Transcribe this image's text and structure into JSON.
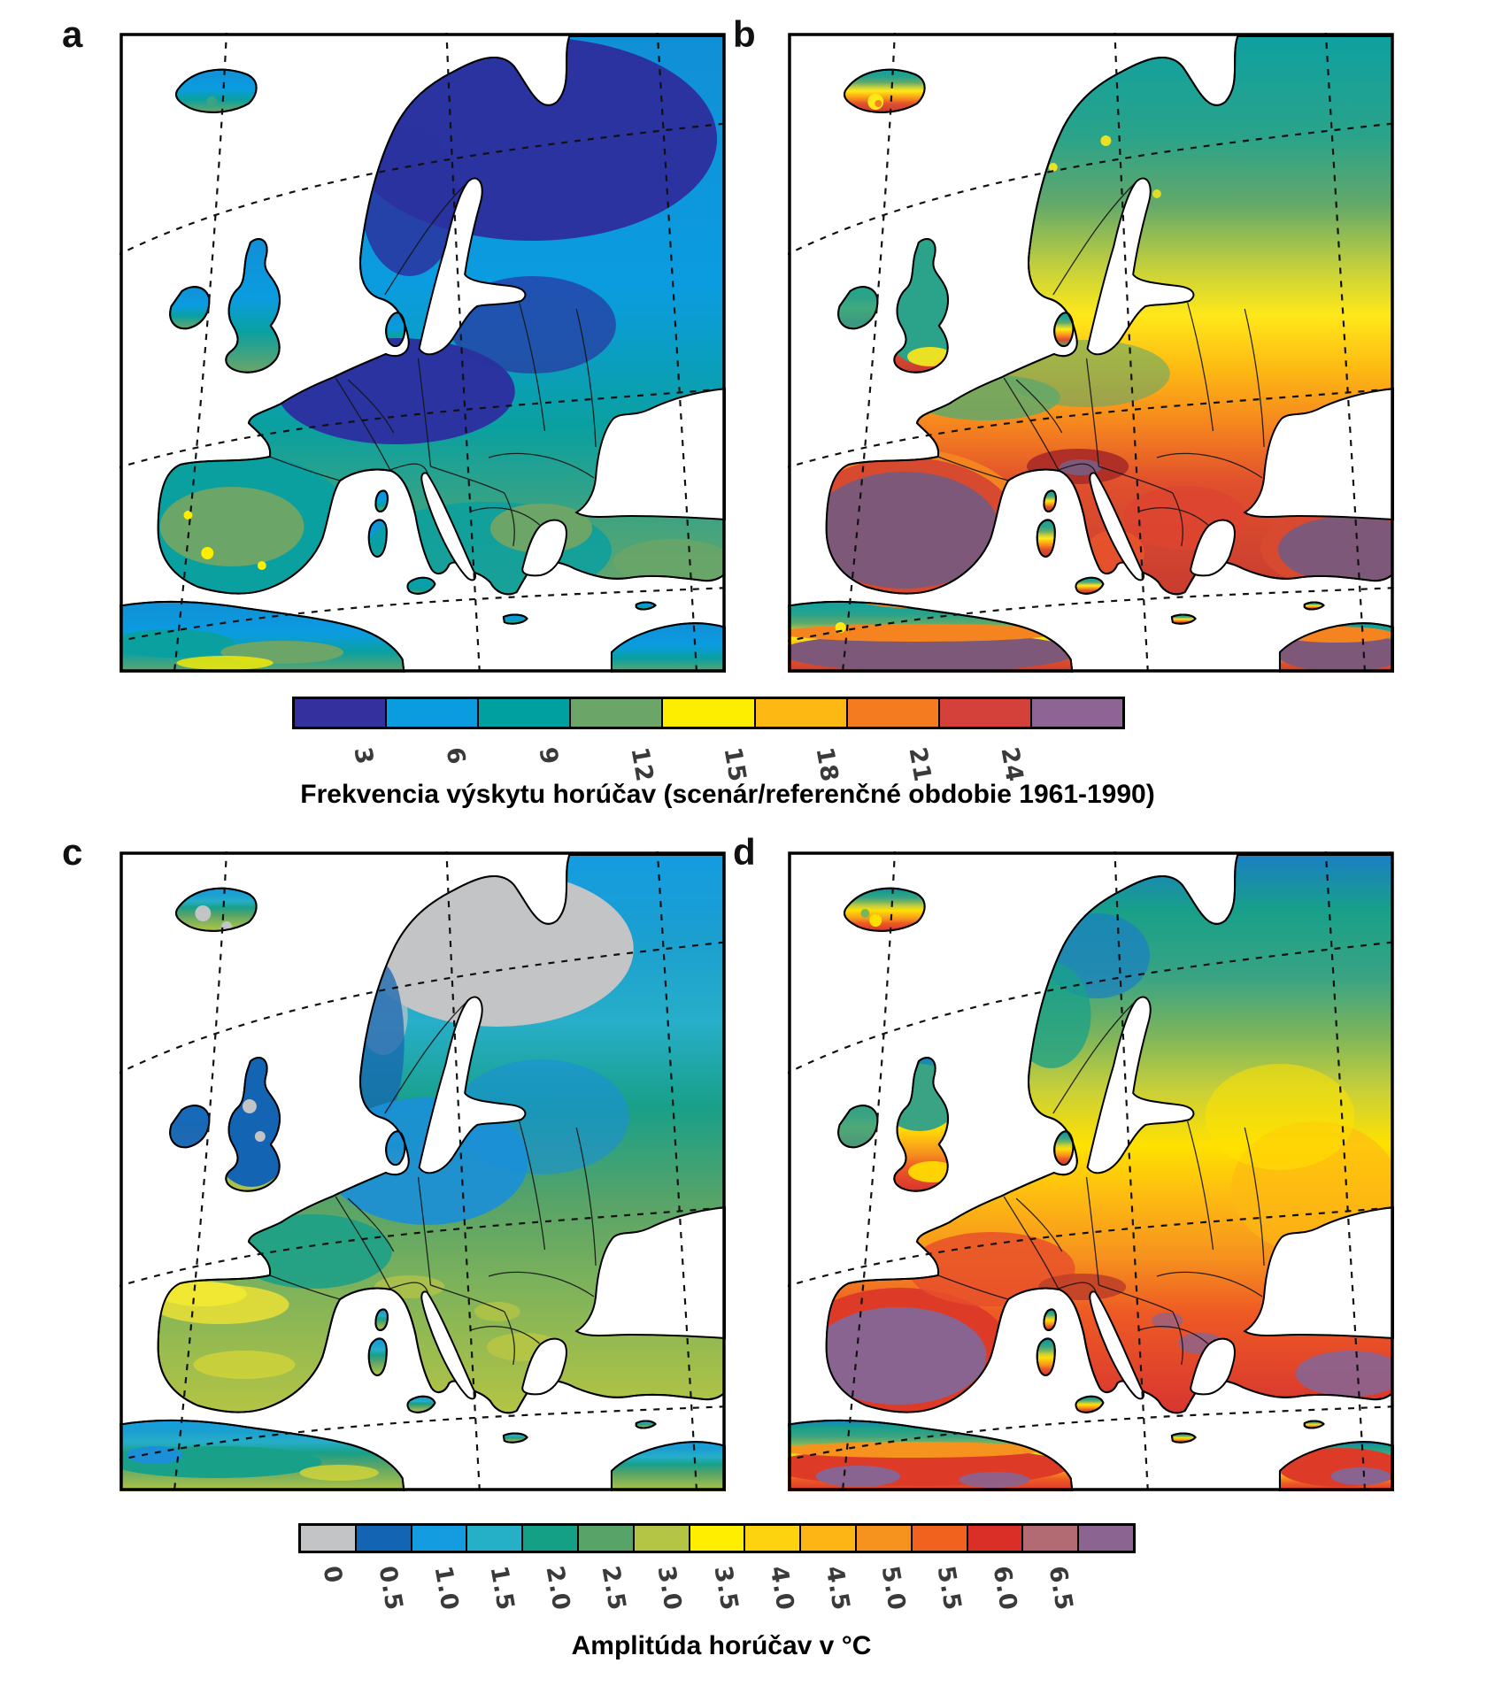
{
  "figure": {
    "panels": [
      {
        "id": "a",
        "label": "a"
      },
      {
        "id": "b",
        "label": "b"
      },
      {
        "id": "c",
        "label": "c"
      },
      {
        "id": "d",
        "label": "d"
      }
    ],
    "colorbar_frequency": {
      "caption": "Frekvencia výskytu horúčav (scenár/referenčné obdobie 1961-1990)",
      "ticks": [
        "3",
        "6",
        "9",
        "12",
        "15",
        "18",
        "21",
        "24"
      ],
      "colors": [
        "#34319e",
        "#0b9ce0",
        "#00a0a0",
        "#6ba567",
        "#fdee00",
        "#fdb813",
        "#f47b20",
        "#d4403a",
        "#8d6493"
      ]
    },
    "colorbar_amplitude": {
      "caption": "Amplitúda horúčav v °C",
      "ticks": [
        "0",
        "0.5",
        "1.0",
        "1.5",
        "2.0",
        "2.5",
        "3.0",
        "3.5",
        "4.0",
        "4.5",
        "5.0",
        "5.5",
        "6.0",
        "6.5"
      ],
      "colors": [
        "#c3c4c6",
        "#1464b4",
        "#149ce0",
        "#26b0c8",
        "#14a085",
        "#57a368",
        "#b4c444",
        "#ffee00",
        "#fdd20f",
        "#fcb514",
        "#f6921e",
        "#f2621f",
        "#da2f27",
        "#b26b72",
        "#8b6492"
      ]
    }
  },
  "chart_data": {
    "type": "heatmap",
    "panels": [
      "a",
      "b",
      "c",
      "d"
    ],
    "legend_frequency": {
      "caption": "Frekvencia výskytu horúčav (scenár/referenčné obdobie 1961-1990)",
      "tick_values": [
        3,
        6,
        9,
        12,
        15,
        18,
        21,
        24
      ],
      "n_bins": 9,
      "bin_colors": [
        "#34319e",
        "#0b9ce0",
        "#00a0a0",
        "#6ba567",
        "#fdee00",
        "#fdb813",
        "#f47b20",
        "#d4403a",
        "#8d6493"
      ]
    },
    "legend_amplitude": {
      "caption": "Amplitúda horúčav v °C",
      "tick_values": [
        0,
        0.5,
        1.0,
        1.5,
        2.0,
        2.5,
        3.0,
        3.5,
        4.0,
        4.5,
        5.0,
        5.5,
        6.0,
        6.5
      ],
      "n_bins": 15,
      "bin_colors": [
        "#c3c4c6",
        "#1464b4",
        "#149ce0",
        "#26b0c8",
        "#14a085",
        "#57a368",
        "#b4c444",
        "#ffee00",
        "#fdd20f",
        "#fcb514",
        "#f6921e",
        "#f2621f",
        "#da2f27",
        "#b26b72",
        "#8b6492"
      ]
    }
  }
}
